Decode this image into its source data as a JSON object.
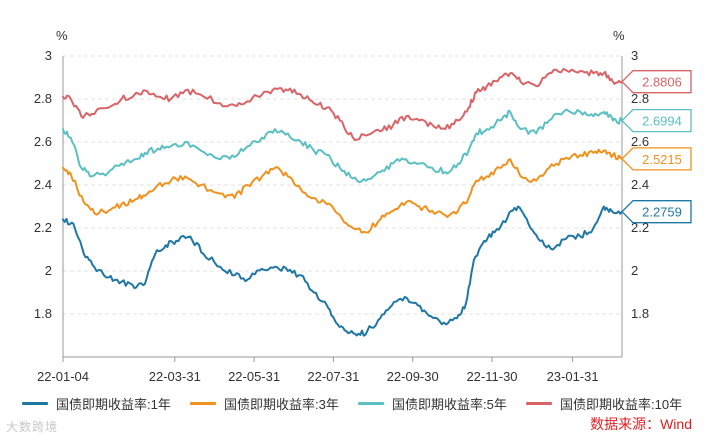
{
  "chart_data": {
    "type": "line",
    "unit_left": "%",
    "unit_right": "%",
    "ylim": [
      1.6,
      3.0
    ],
    "y_ticks": [
      1.8,
      2,
      2.2,
      2.4,
      2.6,
      2.8,
      3
    ],
    "y_tick_labels": [
      "1.8",
      "2",
      "2.2",
      "2.4",
      "2.6",
      "2.8",
      "3"
    ],
    "x_range": [
      "2022-01-04",
      "2023-03-10"
    ],
    "x_ticks": [
      "2022-01-04",
      "2022-03-31",
      "2022-05-31",
      "2022-07-31",
      "2022-09-30",
      "2022-11-30",
      "2023-01-31"
    ],
    "x_tick_labels": [
      "22-01-04",
      "22-03-31",
      "22-05-31",
      "22-07-31",
      "22-09-30",
      "22-11-30",
      "23-01-31"
    ],
    "grid": true,
    "legend_position": "bottom",
    "source": "数据来源：Wind",
    "watermark": "大数跨境",
    "series": [
      {
        "name": "国债即期收益率:1年",
        "color": "#1f77a4",
        "end_label": "2.2759",
        "points": [
          [
            "2022-01-04",
            2.24
          ],
          [
            "2022-01-12",
            2.22
          ],
          [
            "2022-01-20",
            2.08
          ],
          [
            "2022-01-28",
            2.02
          ],
          [
            "2022-02-08",
            1.97
          ],
          [
            "2022-02-18",
            1.95
          ],
          [
            "2022-02-28",
            1.92
          ],
          [
            "2022-03-08",
            1.94
          ],
          [
            "2022-03-16",
            2.08
          ],
          [
            "2022-03-24",
            2.12
          ],
          [
            "2022-04-01",
            2.14
          ],
          [
            "2022-04-12",
            2.16
          ],
          [
            "2022-04-22",
            2.08
          ],
          [
            "2022-05-05",
            2.02
          ],
          [
            "2022-05-16",
            1.98
          ],
          [
            "2022-05-26",
            1.96
          ],
          [
            "2022-06-06",
            2.01
          ],
          [
            "2022-06-16",
            2.02
          ],
          [
            "2022-06-26",
            2.0
          ],
          [
            "2022-07-06",
            1.98
          ],
          [
            "2022-07-16",
            1.9
          ],
          [
            "2022-07-26",
            1.84
          ],
          [
            "2022-08-02",
            1.76
          ],
          [
            "2022-08-10",
            1.72
          ],
          [
            "2022-08-18",
            1.7
          ],
          [
            "2022-08-26",
            1.72
          ],
          [
            "2022-09-05",
            1.78
          ],
          [
            "2022-09-14",
            1.84
          ],
          [
            "2022-09-24",
            1.88
          ],
          [
            "2022-10-04",
            1.84
          ],
          [
            "2022-10-14",
            1.79
          ],
          [
            "2022-10-24",
            1.76
          ],
          [
            "2022-11-03",
            1.78
          ],
          [
            "2022-11-10",
            1.85
          ],
          [
            "2022-11-16",
            2.05
          ],
          [
            "2022-11-24",
            2.14
          ],
          [
            "2022-12-02",
            2.18
          ],
          [
            "2022-12-12",
            2.25
          ],
          [
            "2022-12-20",
            2.3
          ],
          [
            "2022-12-28",
            2.22
          ],
          [
            "2023-01-06",
            2.14
          ],
          [
            "2023-01-16",
            2.1
          ],
          [
            "2023-01-26",
            2.15
          ],
          [
            "2023-02-06",
            2.16
          ],
          [
            "2023-02-16",
            2.2
          ],
          [
            "2023-02-24",
            2.3
          ],
          [
            "2023-03-02",
            2.28
          ],
          [
            "2023-03-10",
            2.2759
          ]
        ]
      },
      {
        "name": "国债即期收益率:3年",
        "color": "#f0921e",
        "end_label": "2.5215",
        "points": [
          [
            "2022-01-04",
            2.48
          ],
          [
            "2022-01-10",
            2.45
          ],
          [
            "2022-01-20",
            2.32
          ],
          [
            "2022-01-28",
            2.27
          ],
          [
            "2022-02-08",
            2.28
          ],
          [
            "2022-02-18",
            2.31
          ],
          [
            "2022-02-28",
            2.33
          ],
          [
            "2022-03-08",
            2.35
          ],
          [
            "2022-03-18",
            2.4
          ],
          [
            "2022-03-28",
            2.42
          ],
          [
            "2022-04-08",
            2.44
          ],
          [
            "2022-04-20",
            2.4
          ],
          [
            "2022-05-05",
            2.36
          ],
          [
            "2022-05-16",
            2.34
          ],
          [
            "2022-05-26",
            2.4
          ],
          [
            "2022-06-06",
            2.44
          ],
          [
            "2022-06-16",
            2.48
          ],
          [
            "2022-06-26",
            2.44
          ],
          [
            "2022-07-06",
            2.38
          ],
          [
            "2022-07-16",
            2.34
          ],
          [
            "2022-07-26",
            2.31
          ],
          [
            "2022-08-05",
            2.26
          ],
          [
            "2022-08-15",
            2.2
          ],
          [
            "2022-08-25",
            2.18
          ],
          [
            "2022-09-05",
            2.24
          ],
          [
            "2022-09-15",
            2.28
          ],
          [
            "2022-09-25",
            2.32
          ],
          [
            "2022-10-05",
            2.3
          ],
          [
            "2022-10-15",
            2.28
          ],
          [
            "2022-10-25",
            2.26
          ],
          [
            "2022-11-04",
            2.28
          ],
          [
            "2022-11-12",
            2.34
          ],
          [
            "2022-11-18",
            2.42
          ],
          [
            "2022-11-26",
            2.44
          ],
          [
            "2022-12-06",
            2.48
          ],
          [
            "2022-12-14",
            2.52
          ],
          [
            "2022-12-22",
            2.44
          ],
          [
            "2023-01-03",
            2.42
          ],
          [
            "2023-01-13",
            2.48
          ],
          [
            "2023-01-24",
            2.52
          ],
          [
            "2023-02-06",
            2.54
          ],
          [
            "2023-02-16",
            2.55
          ],
          [
            "2023-02-24",
            2.56
          ],
          [
            "2023-03-03",
            2.54
          ],
          [
            "2023-03-10",
            2.5215
          ]
        ]
      },
      {
        "name": "国债即期收益率:5年",
        "color": "#5bbfc3",
        "end_label": "2.6994",
        "points": [
          [
            "2022-01-04",
            2.66
          ],
          [
            "2022-01-10",
            2.62
          ],
          [
            "2022-01-18",
            2.48
          ],
          [
            "2022-01-26",
            2.44
          ],
          [
            "2022-02-08",
            2.46
          ],
          [
            "2022-02-18",
            2.5
          ],
          [
            "2022-02-28",
            2.52
          ],
          [
            "2022-03-08",
            2.55
          ],
          [
            "2022-03-18",
            2.57
          ],
          [
            "2022-03-28",
            2.58
          ],
          [
            "2022-04-08",
            2.6
          ],
          [
            "2022-04-20",
            2.56
          ],
          [
            "2022-05-05",
            2.52
          ],
          [
            "2022-05-16",
            2.53
          ],
          [
            "2022-05-26",
            2.58
          ],
          [
            "2022-06-06",
            2.62
          ],
          [
            "2022-06-16",
            2.66
          ],
          [
            "2022-06-26",
            2.64
          ],
          [
            "2022-07-06",
            2.6
          ],
          [
            "2022-07-16",
            2.56
          ],
          [
            "2022-07-26",
            2.54
          ],
          [
            "2022-08-05",
            2.48
          ],
          [
            "2022-08-15",
            2.43
          ],
          [
            "2022-08-25",
            2.42
          ],
          [
            "2022-09-05",
            2.46
          ],
          [
            "2022-09-15",
            2.5
          ],
          [
            "2022-09-25",
            2.52
          ],
          [
            "2022-10-05",
            2.5
          ],
          [
            "2022-10-15",
            2.48
          ],
          [
            "2022-10-25",
            2.46
          ],
          [
            "2022-11-04",
            2.5
          ],
          [
            "2022-11-12",
            2.56
          ],
          [
            "2022-11-18",
            2.64
          ],
          [
            "2022-11-26",
            2.66
          ],
          [
            "2022-12-06",
            2.7
          ],
          [
            "2022-12-14",
            2.74
          ],
          [
            "2022-12-22",
            2.66
          ],
          [
            "2023-01-03",
            2.64
          ],
          [
            "2023-01-13",
            2.7
          ],
          [
            "2023-01-24",
            2.74
          ],
          [
            "2023-02-06",
            2.74
          ],
          [
            "2023-02-16",
            2.72
          ],
          [
            "2023-02-24",
            2.74
          ],
          [
            "2023-03-03",
            2.7
          ],
          [
            "2023-03-10",
            2.6994
          ]
        ]
      },
      {
        "name": "国债即期收益率:10年",
        "color": "#d96468",
        "end_label": "2.8806",
        "points": [
          [
            "2022-01-04",
            2.81
          ],
          [
            "2022-01-10",
            2.8
          ],
          [
            "2022-01-18",
            2.72
          ],
          [
            "2022-01-26",
            2.73
          ],
          [
            "2022-02-08",
            2.76
          ],
          [
            "2022-02-18",
            2.8
          ],
          [
            "2022-02-28",
            2.82
          ],
          [
            "2022-03-08",
            2.84
          ],
          [
            "2022-03-18",
            2.81
          ],
          [
            "2022-03-28",
            2.8
          ],
          [
            "2022-04-08",
            2.84
          ],
          [
            "2022-04-20",
            2.82
          ],
          [
            "2022-05-05",
            2.78
          ],
          [
            "2022-05-16",
            2.77
          ],
          [
            "2022-05-26",
            2.79
          ],
          [
            "2022-06-06",
            2.82
          ],
          [
            "2022-06-16",
            2.85
          ],
          [
            "2022-06-26",
            2.84
          ],
          [
            "2022-07-06",
            2.82
          ],
          [
            "2022-07-16",
            2.78
          ],
          [
            "2022-07-26",
            2.76
          ],
          [
            "2022-08-05",
            2.7
          ],
          [
            "2022-08-15",
            2.62
          ],
          [
            "2022-08-25",
            2.63
          ],
          [
            "2022-09-05",
            2.65
          ],
          [
            "2022-09-15",
            2.68
          ],
          [
            "2022-09-25",
            2.72
          ],
          [
            "2022-10-05",
            2.7
          ],
          [
            "2022-10-15",
            2.68
          ],
          [
            "2022-10-25",
            2.66
          ],
          [
            "2022-11-04",
            2.7
          ],
          [
            "2022-11-12",
            2.76
          ],
          [
            "2022-11-18",
            2.83
          ],
          [
            "2022-11-26",
            2.86
          ],
          [
            "2022-12-06",
            2.9
          ],
          [
            "2022-12-14",
            2.92
          ],
          [
            "2022-12-22",
            2.88
          ],
          [
            "2023-01-03",
            2.86
          ],
          [
            "2023-01-13",
            2.92
          ],
          [
            "2023-01-24",
            2.94
          ],
          [
            "2023-02-06",
            2.93
          ],
          [
            "2023-02-16",
            2.92
          ],
          [
            "2023-02-24",
            2.92
          ],
          [
            "2023-03-03",
            2.88
          ],
          [
            "2023-03-10",
            2.8806
          ]
        ]
      }
    ]
  }
}
